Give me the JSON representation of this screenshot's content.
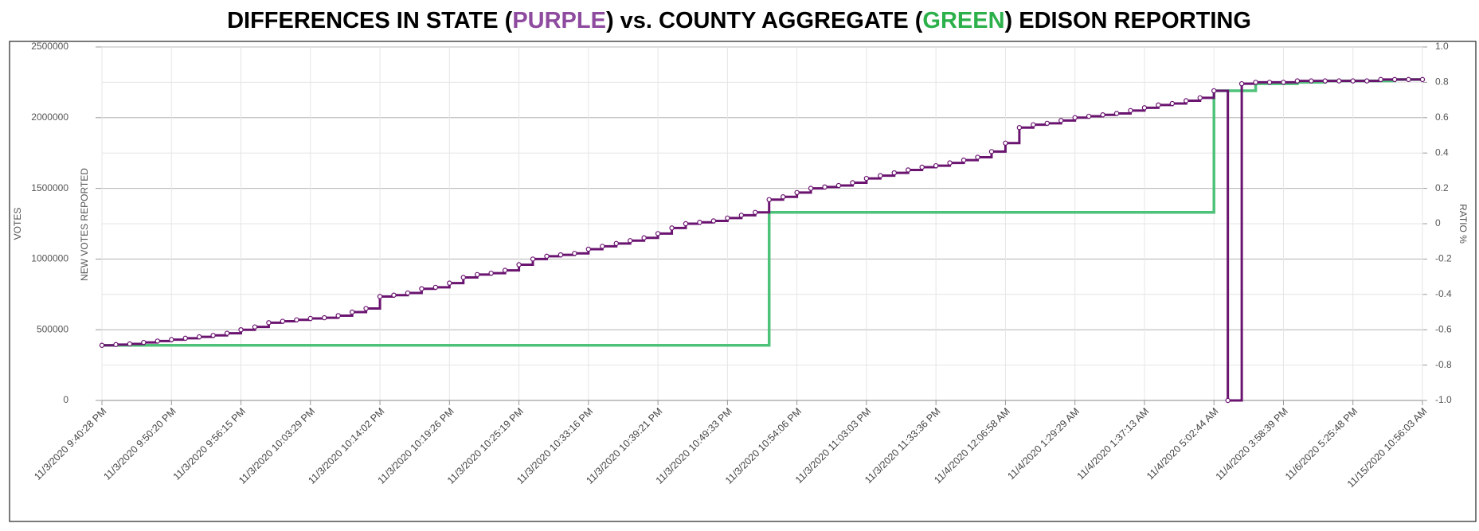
{
  "chart_data": {
    "type": "step-line",
    "title_parts": [
      {
        "text": "DIFFERENCES IN STATE (",
        "color": "#000000"
      },
      {
        "text": "PURPLE",
        "color": "#8e4a9e"
      },
      {
        "text": ") vs. COUNTY AGGREGATE (",
        "color": "#000000"
      },
      {
        "text": "GREEN",
        "color": "#2bb04a"
      },
      {
        "text": ") EDISON REPORTING",
        "color": "#000000"
      }
    ],
    "ylabel": "VOTES",
    "ylabel_inner": "NEW VOTES REPORTED",
    "y2label": "RATIO %",
    "ylim": [
      0,
      2500000
    ],
    "yticks": [
      0,
      500000,
      1000000,
      1500000,
      2000000,
      2500000
    ],
    "y2lim": [
      -1,
      1
    ],
    "y2ticks": [
      {
        "value": -1,
        "label": "-1.0"
      },
      -0.8,
      -0.6,
      -0.4,
      -0.2,
      0,
      0.2,
      0.4,
      0.6,
      0.8,
      {
        "value": 1,
        "label": "1.0"
      }
    ],
    "grid": true,
    "categories": [
      "11/3/2020 9:40:28 PM",
      null,
      null,
      null,
      null,
      "11/3/2020 9:50:20 PM",
      null,
      null,
      null,
      null,
      "11/3/2020 9:56:15 PM",
      null,
      null,
      null,
      null,
      "11/3/2020 10:03:29 PM",
      null,
      null,
      null,
      null,
      "11/3/2020 10:14:02 PM",
      null,
      null,
      null,
      null,
      "11/3/2020 10:19:26 PM",
      null,
      null,
      null,
      null,
      "11/3/2020 10:25:19 PM",
      null,
      null,
      null,
      null,
      "11/3/2020 10:33:16 PM",
      null,
      null,
      null,
      null,
      "11/3/2020 10:39:21 PM",
      null,
      null,
      null,
      null,
      "11/3/2020 10:49:33 PM",
      null,
      null,
      null,
      null,
      "11/3/2020 10:54:06 PM",
      null,
      null,
      null,
      null,
      "11/3/2020 11:03:03 PM",
      null,
      null,
      null,
      null,
      "11/3/2020 11:33:36 PM",
      null,
      null,
      null,
      null,
      "11/4/2020 12:06:58 AM",
      null,
      null,
      null,
      null,
      "11/4/2020 1:29:29 AM",
      null,
      null,
      null,
      null,
      "11/4/2020 1:37:13 AM",
      null,
      null,
      null,
      null,
      "11/4/2020 5:02:44 AM",
      null,
      null,
      null,
      null,
      "11/4/2020 3:58:39 PM",
      null,
      null,
      null,
      null,
      "11/6/2020 5:25:48 PM",
      null,
      null,
      null,
      null,
      "11/15/2020 10:56:03 AM"
    ],
    "series": [
      {
        "color": "#6a1470",
        "markers": true,
        "values": [
          390000,
          395000,
          400000,
          410000,
          420000,
          430000,
          440000,
          450000,
          460000,
          475000,
          500000,
          520000,
          550000,
          560000,
          570000,
          580000,
          585000,
          600000,
          625000,
          650000,
          735000,
          745000,
          760000,
          790000,
          800000,
          830000,
          870000,
          890000,
          900000,
          920000,
          960000,
          1000000,
          1020000,
          1030000,
          1040000,
          1070000,
          1090000,
          1110000,
          1130000,
          1150000,
          1180000,
          1220000,
          1250000,
          1260000,
          1270000,
          1290000,
          1310000,
          1330000,
          1420000,
          1440000,
          1470000,
          1500000,
          1510000,
          1520000,
          1540000,
          1570000,
          1590000,
          1610000,
          1630000,
          1650000,
          1660000,
          1680000,
          1700000,
          1720000,
          1760000,
          1820000,
          1930000,
          1950000,
          1960000,
          1980000,
          2000000,
          2010000,
          2020000,
          2030000,
          2050000,
          2070000,
          2090000,
          2100000,
          2120000,
          2140000,
          2190000,
          0,
          2240000,
          2250000,
          2250000,
          2250000,
          2260000,
          2260000,
          2260000,
          2260000,
          2260000,
          2260000,
          2270000,
          2270000,
          2270000,
          2270000
        ]
      },
      {
        "color": "#4fc27a",
        "markers": false,
        "values": [
          390000,
          390000,
          390000,
          390000,
          390000,
          390000,
          390000,
          390000,
          390000,
          390000,
          390000,
          390000,
          390000,
          390000,
          390000,
          390000,
          390000,
          390000,
          390000,
          390000,
          390000,
          390000,
          390000,
          390000,
          390000,
          390000,
          390000,
          390000,
          390000,
          390000,
          390000,
          390000,
          390000,
          390000,
          390000,
          390000,
          390000,
          390000,
          390000,
          390000,
          390000,
          390000,
          390000,
          390000,
          390000,
          390000,
          390000,
          390000,
          1330000,
          1330000,
          1330000,
          1330000,
          1330000,
          1330000,
          1330000,
          1330000,
          1330000,
          1330000,
          1330000,
          1330000,
          1330000,
          1330000,
          1330000,
          1330000,
          1330000,
          1330000,
          1330000,
          1330000,
          1330000,
          1330000,
          1330000,
          1330000,
          1330000,
          1330000,
          1330000,
          1330000,
          1330000,
          1330000,
          1330000,
          1330000,
          2190000,
          2190000,
          2190000,
          2240000,
          2240000,
          2240000,
          2250000,
          2250000,
          2260000,
          2260000,
          2260000,
          2260000,
          2260000,
          2270000,
          2270000,
          2270000
        ]
      }
    ]
  }
}
